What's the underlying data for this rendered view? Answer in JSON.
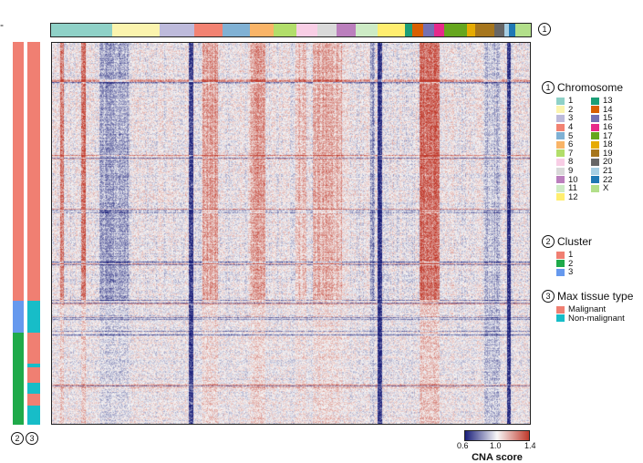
{
  "chart_data": {
    "type": "heatmap",
    "colorbar": {
      "min": 0.6,
      "mid": 1.0,
      "max": 1.4,
      "ticks": [
        "0.6",
        "1.0",
        "1.4"
      ],
      "label": "CNA score",
      "low_color": "#1a1f7a",
      "mid_color": "#f7f7f7",
      "high_color": "#c0392b"
    },
    "chromosome_bar": {
      "marker": "1",
      "chromosomes": [
        "1",
        "2",
        "3",
        "4",
        "5",
        "6",
        "7",
        "8",
        "9",
        "10",
        "11",
        "12",
        "13",
        "14",
        "15",
        "16",
        "17",
        "18",
        "19",
        "20",
        "21",
        "22",
        "X"
      ],
      "relative_sizes": [
        80,
        62,
        46,
        36,
        36,
        31,
        30,
        28,
        25,
        25,
        28,
        36,
        10,
        14,
        14,
        14,
        30,
        10,
        26,
        12,
        6,
        9,
        20
      ]
    },
    "rows": {
      "cluster_annotation": {
        "marker": "2",
        "segments": [
          {
            "cluster": "1",
            "fraction": 0.675
          },
          {
            "cluster": "3",
            "fraction": 0.085
          },
          {
            "cluster": "2",
            "fraction": 0.24
          }
        ]
      },
      "tissue_annotation": {
        "marker": "3",
        "segments": [
          {
            "type": "Malignant",
            "fraction": 0.675
          },
          {
            "type": "Non-malignant",
            "fraction": 0.085
          },
          {
            "type": "Malignant",
            "fraction": 0.08
          },
          {
            "type": "Non-malignant",
            "fraction": 0.01
          },
          {
            "type": "Malignant",
            "fraction": 0.04
          },
          {
            "type": "Non-malignant",
            "fraction": 0.03
          },
          {
            "type": "Malignant",
            "fraction": 0.03
          },
          {
            "type": "Non-malignant",
            "fraction": 0.05
          }
        ]
      }
    },
    "column_features": [
      {
        "pos": 0.02,
        "w": 0.005,
        "v": 1.25,
        "span": "top"
      },
      {
        "pos": 0.065,
        "w": 0.008,
        "v": 1.3,
        "span": "top"
      },
      {
        "pos": 0.13,
        "w": 0.06,
        "v": 0.85,
        "span": "top"
      },
      {
        "pos": 0.29,
        "w": 0.006,
        "v": 0.65,
        "span": "all"
      },
      {
        "pos": 0.33,
        "w": 0.03,
        "v": 1.18,
        "span": "top"
      },
      {
        "pos": 0.43,
        "w": 0.03,
        "v": 1.18,
        "span": "top"
      },
      {
        "pos": 0.52,
        "w": 0.02,
        "v": 1.12,
        "span": "top"
      },
      {
        "pos": 0.575,
        "w": 0.06,
        "v": 1.15,
        "span": "top"
      },
      {
        "pos": 0.67,
        "w": 0.008,
        "v": 0.85,
        "span": "top"
      },
      {
        "pos": 0.685,
        "w": 0.007,
        "v": 0.62,
        "span": "all"
      },
      {
        "pos": 0.79,
        "w": 0.04,
        "v": 1.3,
        "span": "top"
      },
      {
        "pos": 0.92,
        "w": 0.03,
        "v": 0.9,
        "span": "all"
      },
      {
        "pos": 0.955,
        "w": 0.006,
        "v": 0.62,
        "span": "all"
      }
    ],
    "row_bands": [
      0.1,
      0.3,
      0.44,
      0.58,
      0.68,
      0.72,
      0.76,
      0.9
    ]
  },
  "legend": {
    "chromosome": {
      "marker": "1",
      "title": "Chromosome",
      "items": [
        {
          "label": "1",
          "color": "#8fd1c7"
        },
        {
          "label": "2",
          "color": "#fbf4ae"
        },
        {
          "label": "3",
          "color": "#bdbadb"
        },
        {
          "label": "4",
          "color": "#f28272"
        },
        {
          "label": "5",
          "color": "#80b1d4"
        },
        {
          "label": "6",
          "color": "#f9b467"
        },
        {
          "label": "7",
          "color": "#b2de6a"
        },
        {
          "label": "8",
          "color": "#f8cee5"
        },
        {
          "label": "9",
          "color": "#d9d9d9"
        },
        {
          "label": "10",
          "color": "#bb7fbd"
        },
        {
          "label": "11",
          "color": "#cdebc5"
        },
        {
          "label": "12",
          "color": "#ffee6f"
        },
        {
          "label": "13",
          "color": "#1b9e77"
        },
        {
          "label": "14",
          "color": "#d95f02"
        },
        {
          "label": "15",
          "color": "#7570b3"
        },
        {
          "label": "16",
          "color": "#e7298a"
        },
        {
          "label": "17",
          "color": "#66a61e"
        },
        {
          "label": "18",
          "color": "#e6ab02"
        },
        {
          "label": "19",
          "color": "#a6761d"
        },
        {
          "label": "20",
          "color": "#666666"
        },
        {
          "label": "21",
          "color": "#a6cee3"
        },
        {
          "label": "22",
          "color": "#1f78b4"
        },
        {
          "label": "X",
          "color": "#b2df8a"
        }
      ]
    },
    "cluster": {
      "marker": "2",
      "title": "Cluster",
      "items": [
        {
          "label": "1",
          "color": "#f07f72"
        },
        {
          "label": "2",
          "color": "#1faa4a"
        },
        {
          "label": "3",
          "color": "#6699ee"
        }
      ]
    },
    "tissue": {
      "marker": "3",
      "title": "Max tissue type",
      "items": [
        {
          "label": "Malignant",
          "color": "#f07f72"
        },
        {
          "label": "Non-malignant",
          "color": "#17bdc8"
        }
      ]
    }
  },
  "corner_mark": "-"
}
